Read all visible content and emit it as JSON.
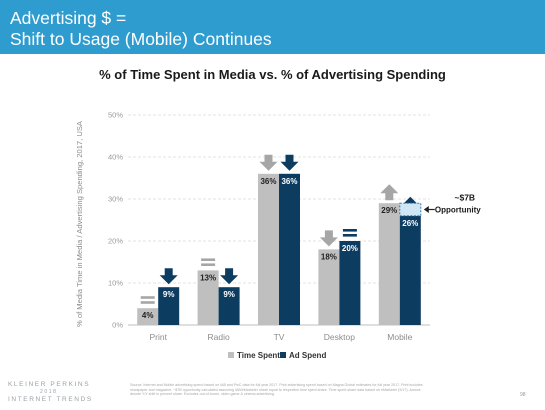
{
  "slide": {
    "title_line1": "Advertising $ =",
    "title_line2": "Shift to Usage (Mobile) Continues",
    "page_number": "98",
    "logo_line1": "KLEINER PERKINS",
    "logo_line2": "2018",
    "logo_line3": "INTERNET TRENDS",
    "source_text": "Source: Internet and Mobile advertising spend based on IAB and PwC data for full year 2017. Print advertising spend based on Magna Global estimates for full year 2017. Print includes newspaper and magazine. ~$7B opportunity calculated assuming IAB/eMarketer share equal to respective time spent share. Time spent share data based on eMarketer (9/17). Arrows denote Y/Y shift in percent share. Excludes out-of-home, video game & cinema advertising.",
    "header_color": "#2e9ccf"
  },
  "chart_data": {
    "type": "bar",
    "title": "% of Time Spent in Media vs. % of Advertising Spending",
    "ylabel": "% of Media Time in Media / Advertising Spending, 2017, USA",
    "xlabel": "",
    "ylim": [
      0,
      50
    ],
    "yticks": [
      "0%",
      "10%",
      "20%",
      "30%",
      "40%",
      "50%"
    ],
    "categories": [
      "Print",
      "Radio",
      "TV",
      "Desktop",
      "Mobile"
    ],
    "series": [
      {
        "name": "Time Spent",
        "color": "#bfbfbf",
        "values": [
          4,
          13,
          36,
          18,
          29
        ],
        "labels": [
          "4%",
          "13%",
          "36%",
          "18%",
          "29%"
        ],
        "trend": [
          "equal",
          "equal",
          "down",
          "down",
          "up"
        ]
      },
      {
        "name": "Ad Spend",
        "color": "#0d3c61",
        "values": [
          9,
          9,
          36,
          20,
          26
        ],
        "labels": [
          "9%",
          "9%",
          "36%",
          "20%",
          "26%"
        ],
        "trend": [
          "down",
          "down",
          "down",
          "equal",
          "up"
        ]
      }
    ],
    "opportunity": {
      "category": "Mobile",
      "from": 26,
      "to": 29,
      "label_value": "~$7B",
      "label_text": "Opportunity"
    },
    "legend_position": "bottom",
    "gridlines": true
  }
}
